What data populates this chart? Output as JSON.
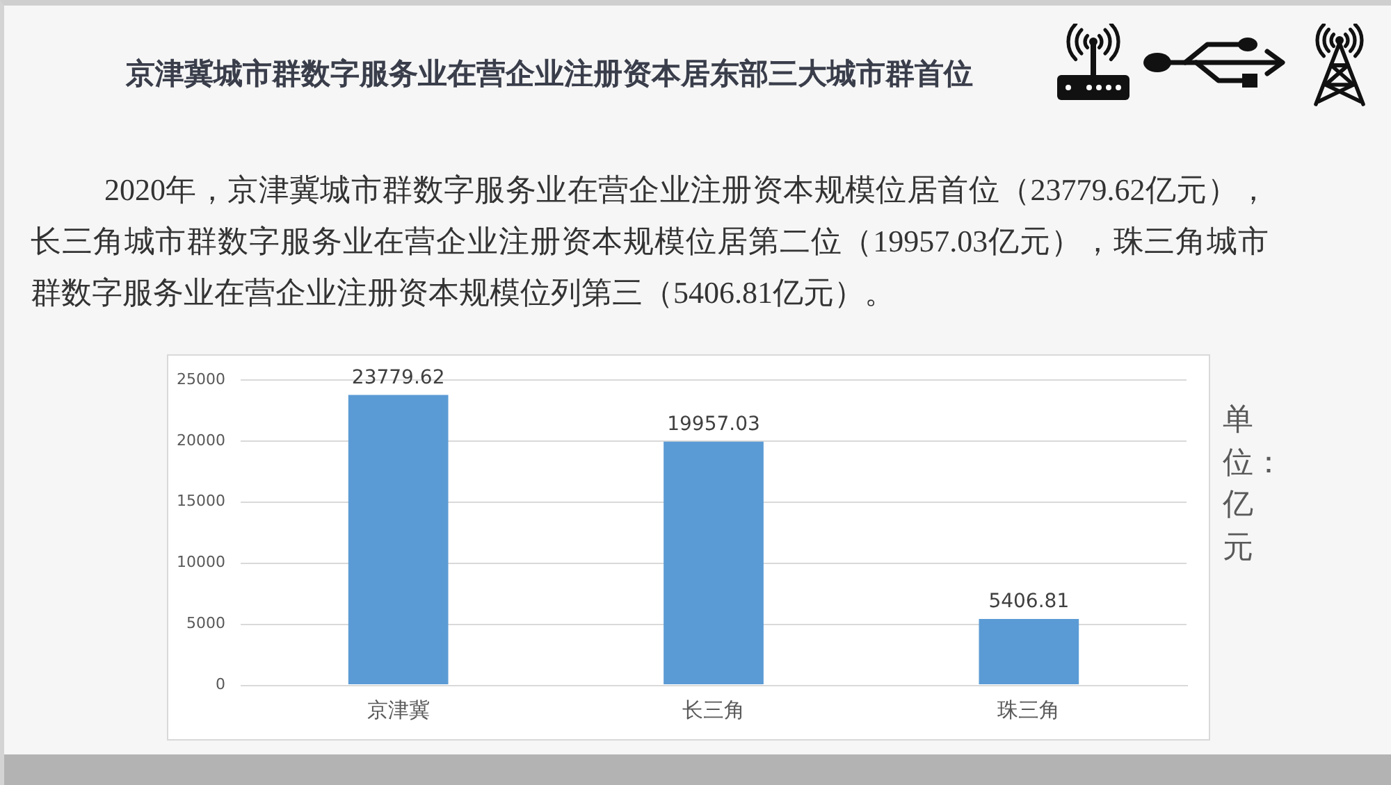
{
  "chart_data": {
    "type": "bar",
    "title": "京津冀城市群数字服务业在营企业注册资本居东部三大城市群首位",
    "subtitle": "2020年，京津冀城市群数字服务业在营企业注册资本规模位居首位（23779.62亿元），长三角城市群数字服务业在营企业注册资本规模位居第二位（19957.03亿元），珠三角城市群数字服务业在营企业注册资本规模位列第三（5406.81亿元）。",
    "ylabel": "单位：亿元",
    "categories": [
      "京津冀",
      "长三角",
      "珠三角"
    ],
    "values": [
      23779.62,
      19957.03,
      5406.81
    ],
    "color": "#5b9bd5",
    "ylim": [
      0,
      25000
    ],
    "yticks": [
      0,
      5000,
      10000,
      15000,
      20000,
      25000
    ],
    "grid": "y",
    "data_labels": true
  }
}
